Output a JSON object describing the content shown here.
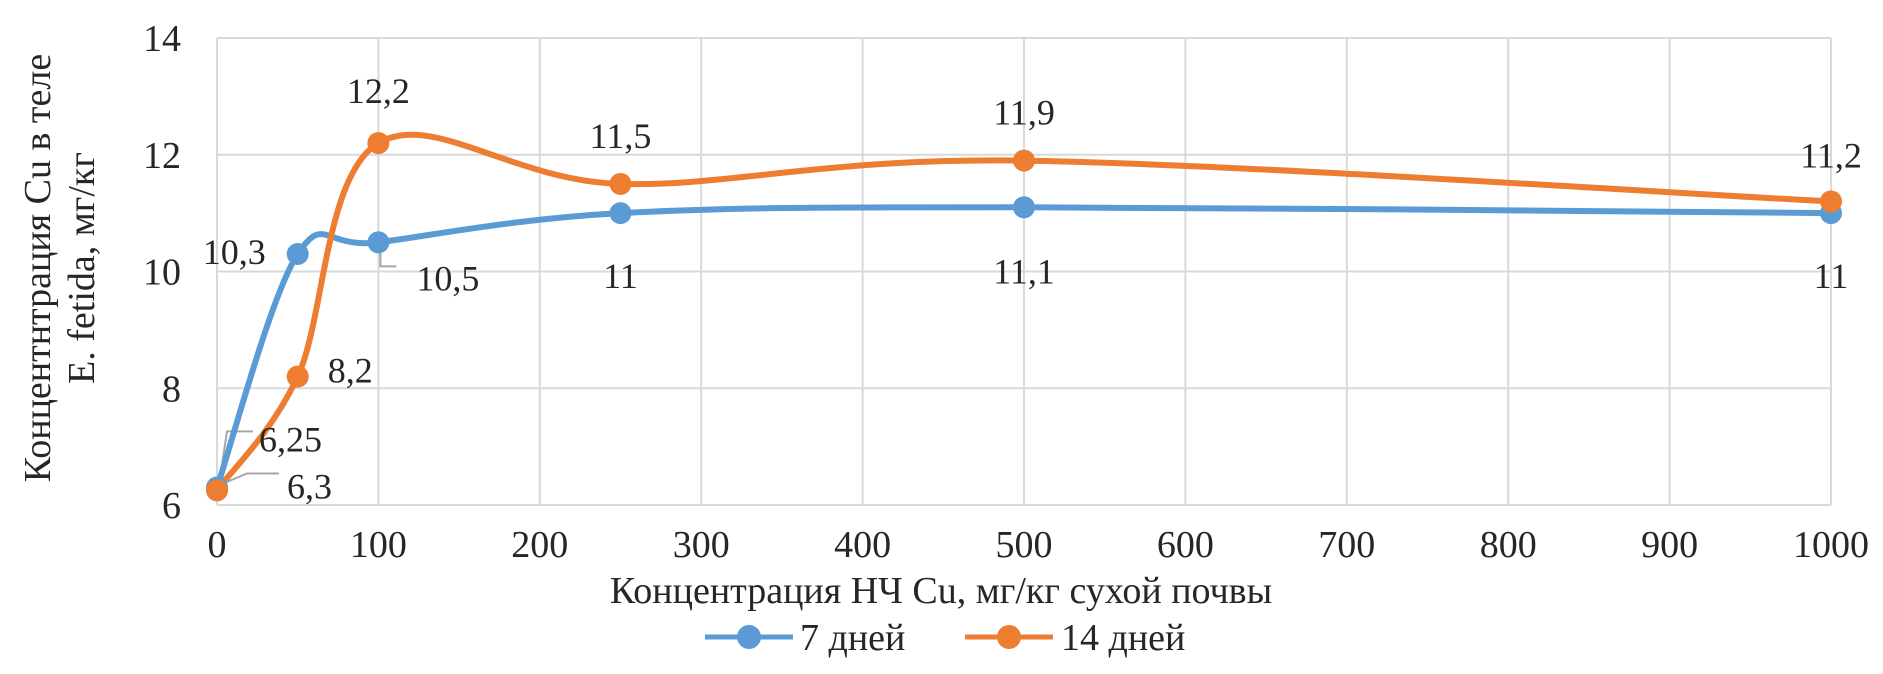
{
  "colors": {
    "series1": "#5B9BD5",
    "series2": "#ED7D31",
    "grid": "#D9D9D9",
    "text": "#262626",
    "leader": "#A6A6A6"
  },
  "chart_data": {
    "type": "line",
    "smooth": true,
    "xlabel": "Концентрация НЧ Cu, мг/кг сухой почвы",
    "ylabel_lines": [
      "Концентнтрация Cu в теле",
      "E. fetida, мг/кг"
    ],
    "xlim": [
      0,
      1000
    ],
    "ylim": [
      6,
      14
    ],
    "x_ticks": [
      "0",
      "100",
      "200",
      "300",
      "400",
      "500",
      "600",
      "700",
      "800",
      "900",
      "1000"
    ],
    "y_ticks": [
      "6",
      "8",
      "10",
      "12",
      "14"
    ],
    "grid": "both",
    "legend_position": "bottom",
    "series": [
      {
        "name": "7 дней",
        "x": [
          0,
          50,
          100,
          250,
          500,
          1000
        ],
        "y": [
          6.3,
          10.3,
          10.5,
          11,
          11.1,
          11
        ],
        "labels": [
          "6,3",
          "10,3",
          "10,5",
          "11",
          "11,1",
          "11"
        ]
      },
      {
        "name": "14 дней",
        "x": [
          0,
          50,
          100,
          250,
          500,
          1000
        ],
        "y": [
          6.25,
          8.2,
          12.2,
          11.5,
          11.9,
          11.2
        ],
        "labels": [
          "6,25",
          "8,2",
          "12,2",
          "11,5",
          "11,9",
          "11,2"
        ]
      }
    ]
  }
}
